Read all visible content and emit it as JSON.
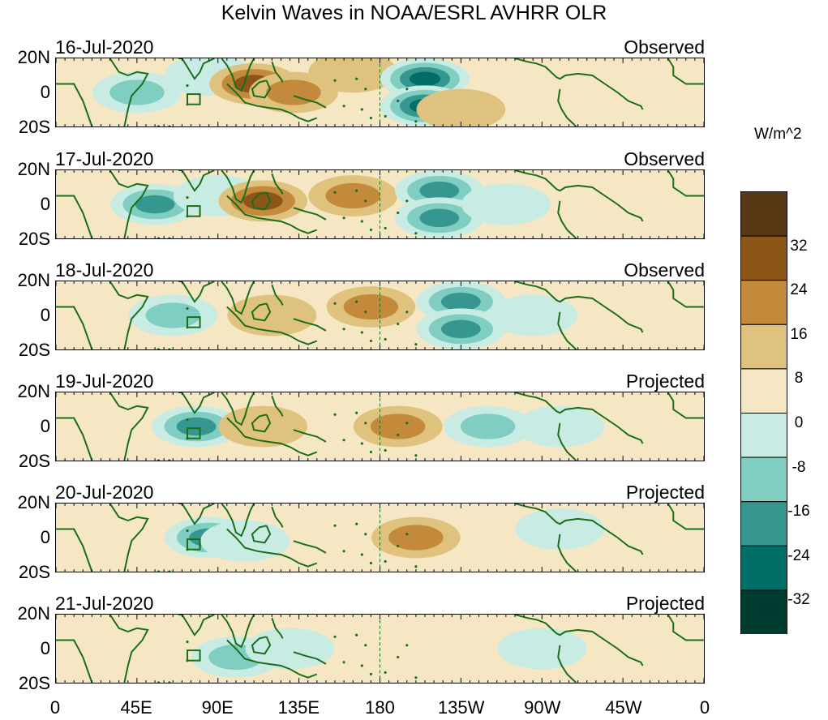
{
  "chart_data": {
    "type": "heatmap",
    "title": "Kelvin Waves in NOAA/ESRL AVHRR OLR",
    "xlabel": "",
    "ylabel": "",
    "x_ticks": [
      "0",
      "45E",
      "90E",
      "135E",
      "180",
      "135W",
      "90W",
      "45W",
      "0"
    ],
    "y_ticks": [
      "20N",
      "0",
      "20S"
    ],
    "colorbar": {
      "unit": "W/m^2",
      "levels": [
        "32",
        "24",
        "16",
        "8",
        "0",
        "-8",
        "-16",
        "-24",
        "-32"
      ],
      "colors": [
        "#583814",
        "#8c5619",
        "#c38a3c",
        "#dfc27d",
        "#f5e7c4",
        "#c8ebe4",
        "#80cdc1",
        "#35978f",
        "#016f67",
        "#003c30"
      ]
    },
    "panels": [
      {
        "date": "16-Jul-2020",
        "status": "Observed"
      },
      {
        "date": "17-Jul-2020",
        "status": "Observed"
      },
      {
        "date": "18-Jul-2020",
        "status": "Observed"
      },
      {
        "date": "19-Jul-2020",
        "status": "Projected"
      },
      {
        "date": "20-Jul-2020",
        "status": "Projected"
      },
      {
        "date": "21-Jul-2020",
        "status": "Projected"
      }
    ],
    "features": [
      [
        {
          "lon": 45,
          "lat": 0,
          "v": -16
        },
        {
          "lon": 85,
          "lat": 10,
          "v": -8
        },
        {
          "lon": 110,
          "lat": 5,
          "v": 24
        },
        {
          "lon": 132,
          "lat": 0,
          "v": 16
        },
        {
          "lon": 165,
          "lat": 12,
          "v": 8
        },
        {
          "lon": 205,
          "lat": 8,
          "v": -32
        },
        {
          "lon": 205,
          "lat": -8,
          "v": -32
        },
        {
          "lon": 225,
          "lat": -10,
          "v": 8
        }
      ],
      [
        {
          "lon": 55,
          "lat": 0,
          "v": -24
        },
        {
          "lon": 90,
          "lat": 5,
          "v": -8
        },
        {
          "lon": 115,
          "lat": 2,
          "v": 24
        },
        {
          "lon": 165,
          "lat": 5,
          "v": 16
        },
        {
          "lon": 213,
          "lat": 8,
          "v": -24
        },
        {
          "lon": 213,
          "lat": -8,
          "v": -24
        },
        {
          "lon": 250,
          "lat": 0,
          "v": -8
        }
      ],
      [
        {
          "lon": 65,
          "lat": 0,
          "v": -16
        },
        {
          "lon": 120,
          "lat": 0,
          "v": 8
        },
        {
          "lon": 175,
          "lat": 5,
          "v": 16
        },
        {
          "lon": 225,
          "lat": 8,
          "v": -24
        },
        {
          "lon": 225,
          "lat": -8,
          "v": -24
        },
        {
          "lon": 265,
          "lat": 0,
          "v": -8
        }
      ],
      [
        {
          "lon": 78,
          "lat": 0,
          "v": -24
        },
        {
          "lon": 115,
          "lat": 0,
          "v": 8
        },
        {
          "lon": 190,
          "lat": 0,
          "v": 16
        },
        {
          "lon": 240,
          "lat": 0,
          "v": -16
        },
        {
          "lon": 280,
          "lat": 0,
          "v": -8
        }
      ],
      [
        {
          "lon": 85,
          "lat": 0,
          "v": -24
        },
        {
          "lon": 105,
          "lat": -2,
          "v": -8
        },
        {
          "lon": 200,
          "lat": 0,
          "v": 16
        },
        {
          "lon": 280,
          "lat": 5,
          "v": -8
        }
      ],
      [
        {
          "lon": 100,
          "lat": -5,
          "v": -16
        },
        {
          "lon": 130,
          "lat": 0,
          "v": -8
        },
        {
          "lon": 270,
          "lat": 0,
          "v": -8
        }
      ]
    ]
  }
}
